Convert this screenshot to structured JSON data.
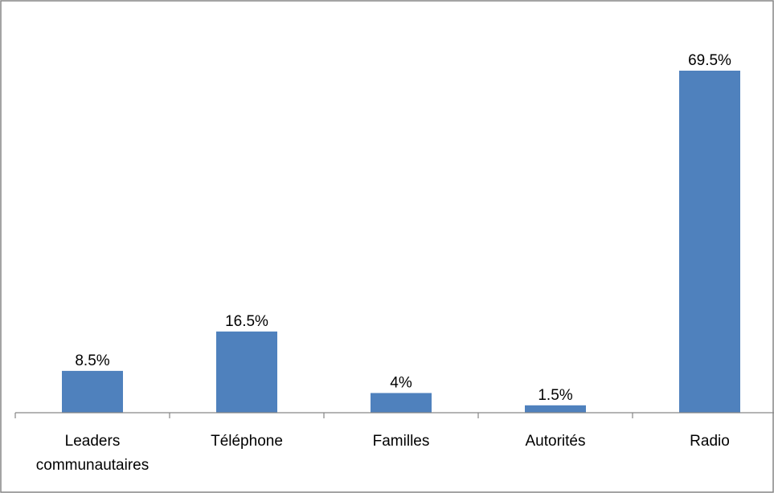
{
  "chart_data": {
    "type": "bar",
    "categories": [
      "Leaders\ncommunautaires",
      "Téléphone",
      "Familles",
      "Autorités",
      "Radio"
    ],
    "values": [
      8.5,
      16.5,
      4,
      1.5,
      69.5
    ],
    "data_labels": [
      "8.5%",
      "16.5%",
      "4%",
      "1.5%",
      "69.5%"
    ],
    "ylim": [
      0,
      75
    ],
    "grid": false,
    "legend": "none",
    "bar_color": "#4f81bd"
  }
}
